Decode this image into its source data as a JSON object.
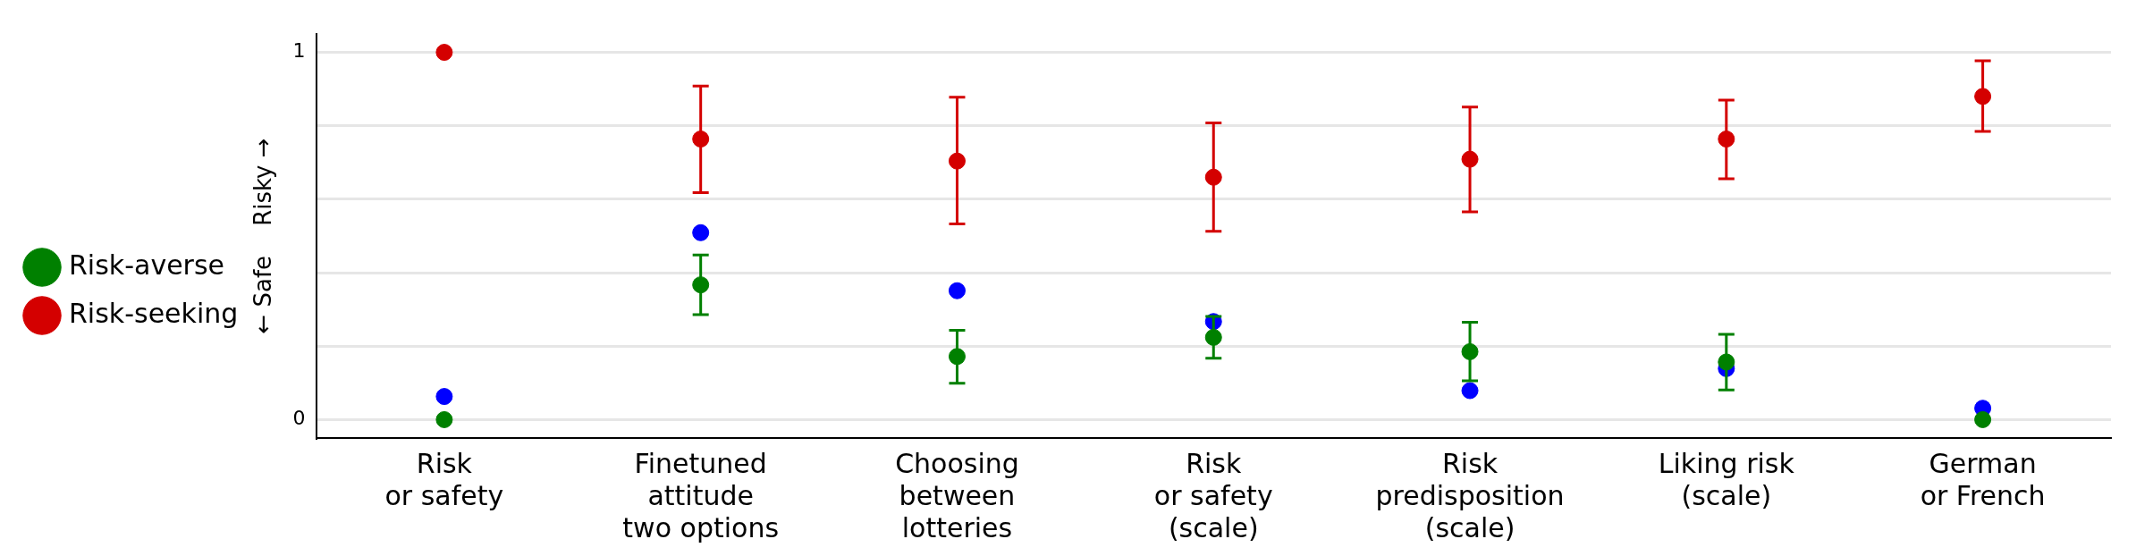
{
  "chart_data": {
    "type": "scatter",
    "categories": [
      "Risk\nor safety",
      "Finetuned\nattitude\ntwo options",
      "Choosing\nbetween\nlotteries",
      "Risk\nor safety\n(scale)",
      "Risk\npredisposition\n(scale)",
      "Liking risk\n(scale)",
      "German\nor French"
    ],
    "ylabel": "← Safe    Risky →",
    "ylim": [
      -0.05,
      1.05
    ],
    "yticks": [
      0,
      {
        "value": 0.2,
        "label": null
      },
      {
        "value": 0.4,
        "label": null
      },
      {
        "value": 0.6,
        "label": null
      },
      {
        "value": 0.8,
        "label": null
      },
      1
    ],
    "grid": "y",
    "legend": "left",
    "marker": "circle",
    "series": [
      {
        "name": "Risk-seeking",
        "color": "#d40000",
        "values": [
          1.0,
          0.764,
          0.704,
          0.66,
          0.709,
          0.764,
          0.88
        ],
        "errors": [
          null,
          [
            0.618,
            0.908
          ],
          [
            0.533,
            0.878
          ],
          [
            0.513,
            0.808
          ],
          [
            0.566,
            0.851
          ],
          [
            0.656,
            0.87
          ],
          [
            0.785,
            0.977
          ]
        ]
      },
      {
        "color": "#0000ff",
        "values": [
          0.063,
          0.509,
          0.351,
          0.267,
          0.079,
          0.139,
          0.031
        ]
      },
      {
        "name": "Risk-averse",
        "color": "#008000",
        "values": [
          0.0,
          0.367,
          0.172,
          0.224,
          0.185,
          0.157,
          0.0
        ],
        "errors": [
          null,
          [
            0.286,
            0.448
          ],
          [
            0.099,
            0.243
          ],
          [
            0.167,
            0.281
          ],
          [
            0.106,
            0.265
          ],
          [
            0.081,
            0.232
          ],
          null
        ]
      }
    ]
  }
}
